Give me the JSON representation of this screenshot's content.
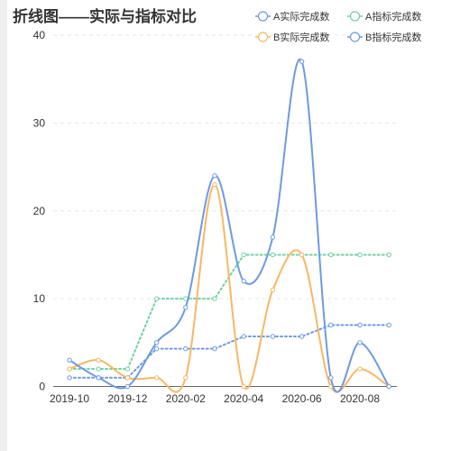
{
  "title": "折线图——实际与指标对比",
  "colors": {
    "grid": "#e6e6e6",
    "axis": "#666666",
    "background": "#ffffff"
  },
  "chart_data": {
    "type": "line",
    "title": "折线图——实际与指标对比",
    "x": [
      "2019-10",
      "2019-11",
      "2019-12",
      "2020-01",
      "2020-02",
      "2020-03",
      "2020-04",
      "2020-05",
      "2020-06",
      "2020-07",
      "2020-08",
      "2020-09"
    ],
    "xtick_labels": [
      "2019-10",
      "2019-12",
      "2020-02",
      "2020-04",
      "2020-06",
      "2020-08"
    ],
    "ytick_labels": [
      "0",
      "10",
      "20",
      "30",
      "40"
    ],
    "ylim": [
      0,
      40
    ],
    "grid": true,
    "legend_position": "top-right",
    "series": [
      {
        "name": "A实际完成数",
        "color": "#6e9ae2",
        "style": "smooth",
        "values": [
          3,
          1,
          0,
          5,
          9,
          24,
          12,
          17,
          37,
          1,
          5,
          0
        ]
      },
      {
        "name": "A指标完成数",
        "color": "#6fd3a0",
        "style": "dotted",
        "values": [
          2,
          2,
          2,
          10,
          10,
          10,
          15,
          15,
          15,
          15,
          15,
          15
        ]
      },
      {
        "name": "B实际完成数",
        "color": "#f8b763",
        "style": "smooth",
        "values": [
          2,
          3,
          1,
          1,
          1,
          23,
          0,
          11,
          15,
          0,
          2,
          0
        ]
      },
      {
        "name": "B指标完成数",
        "color": "#6e9ae2",
        "style": "dotted",
        "values": [
          1,
          1,
          1,
          4.3,
          4.3,
          4.3,
          5.7,
          5.7,
          5.7,
          7,
          7,
          7
        ]
      }
    ]
  }
}
